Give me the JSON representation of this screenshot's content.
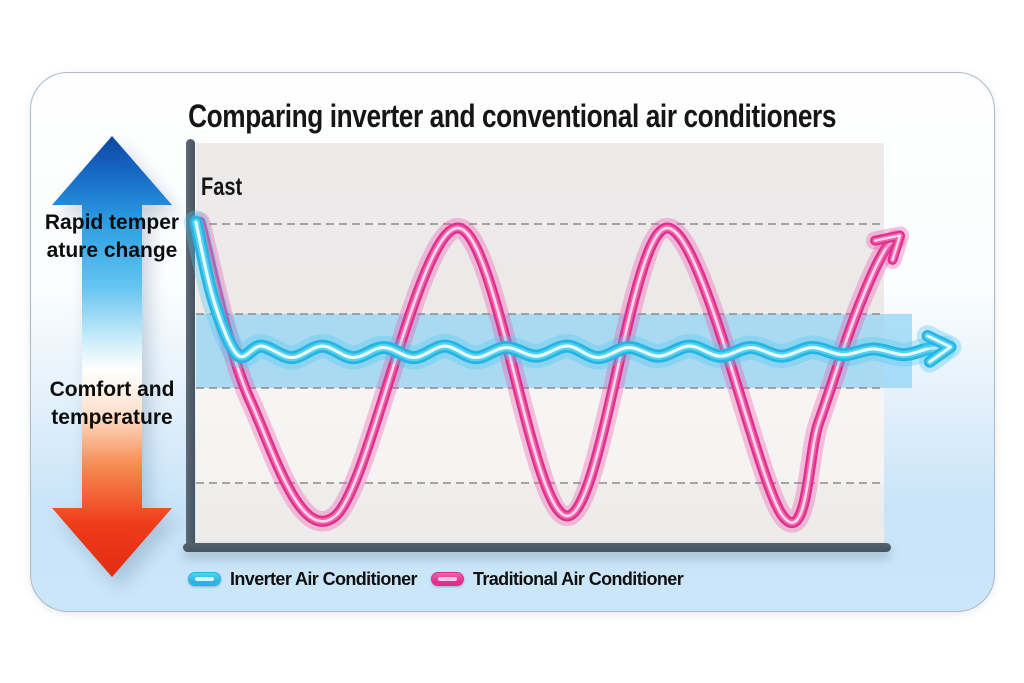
{
  "title": "Comparing inverter and conventional air conditioners",
  "annotations": {
    "fast_label": "Fast",
    "left_top_label_line1": "Rapid temper",
    "left_top_label_line2": "ature change",
    "left_bottom_label_line1": "Comfort and",
    "left_bottom_label_line2": "temperature"
  },
  "legend": {
    "items": [
      {
        "label": "Inverter Air Conditioner"
      },
      {
        "label": "Traditional Air Conditioner"
      }
    ]
  },
  "colors": {
    "axis": "#4a5a66",
    "gridline": "#8b8b8b",
    "comfort_band": "#7fcdf3",
    "card_bottom": "#cbe6f8",
    "updown_arrow_top": "#0d47a1",
    "updown_arrow_bottom": "#e02d12"
  },
  "chart_data": {
    "type": "line",
    "title": "Comparing inverter and conventional air conditioners",
    "x_note": "time (unlabeled in figure), arbitrary units 0-110",
    "y_note": "room temperature deviation from set point, estimated -1 to +1; 'Fast' marked at top of y-axis",
    "gridlines_y": [
      1.028,
      0.403,
      -0.111,
      -0.771
    ],
    "comfort_band": {
      "y_from": 0.403,
      "y_to": -0.111,
      "color": "#7fcdf3"
    },
    "legend_position": "bottom",
    "series": [
      {
        "name": "Traditional Air Conditioner",
        "width": 11,
        "colors": {
          "body": "#df2f8e",
          "mid": "#f162a8",
          "highlight": "#ffd7ec",
          "glow": "rgba(240,80,170,0.33)"
        },
        "points": [
          [
            0,
            1.04
          ],
          [
            7.4,
            -0.2
          ],
          [
            19.9,
            -1.0
          ],
          [
            37.9,
            1.0
          ],
          [
            54.0,
            -1.0
          ],
          [
            68.7,
            1.0
          ],
          [
            85.7,
            -1.0
          ],
          [
            91,
            -0.35
          ],
          [
            95.5,
            0.28
          ],
          [
            98.7,
            0.66
          ],
          [
            100.9,
            0.86
          ],
          [
            102.3,
            0.92
          ]
        ]
      },
      {
        "name": "Inverter Air Conditioner",
        "width": 13,
        "colors": {
          "body": "#25b4e3",
          "mid": "#53d1f0",
          "highlight": "#e8fbff",
          "glow": "rgba(80,200,240,0.35)"
        },
        "points": [
          [
            -0.6,
            1.04
          ],
          [
            2,
            0.5
          ],
          [
            5.5,
            0.12
          ],
          [
            9,
            0.18
          ],
          [
            13.5,
            0.1
          ],
          [
            18,
            0.18
          ],
          [
            22.5,
            0.1
          ],
          [
            27,
            0.17
          ],
          [
            31.5,
            0.1
          ],
          [
            36,
            0.18
          ],
          [
            40.5,
            0.1
          ],
          [
            45,
            0.17
          ],
          [
            49.5,
            0.11
          ],
          [
            54,
            0.18
          ],
          [
            58.5,
            0.1
          ],
          [
            63,
            0.17
          ],
          [
            67.5,
            0.11
          ],
          [
            72,
            0.18
          ],
          [
            76.5,
            0.11
          ],
          [
            81,
            0.17
          ],
          [
            85.5,
            0.11
          ],
          [
            90,
            0.17
          ],
          [
            94.5,
            0.12
          ],
          [
            99,
            0.16
          ],
          [
            103.5,
            0.12
          ],
          [
            107,
            0.16
          ],
          [
            109.5,
            0.17
          ]
        ]
      }
    ]
  }
}
